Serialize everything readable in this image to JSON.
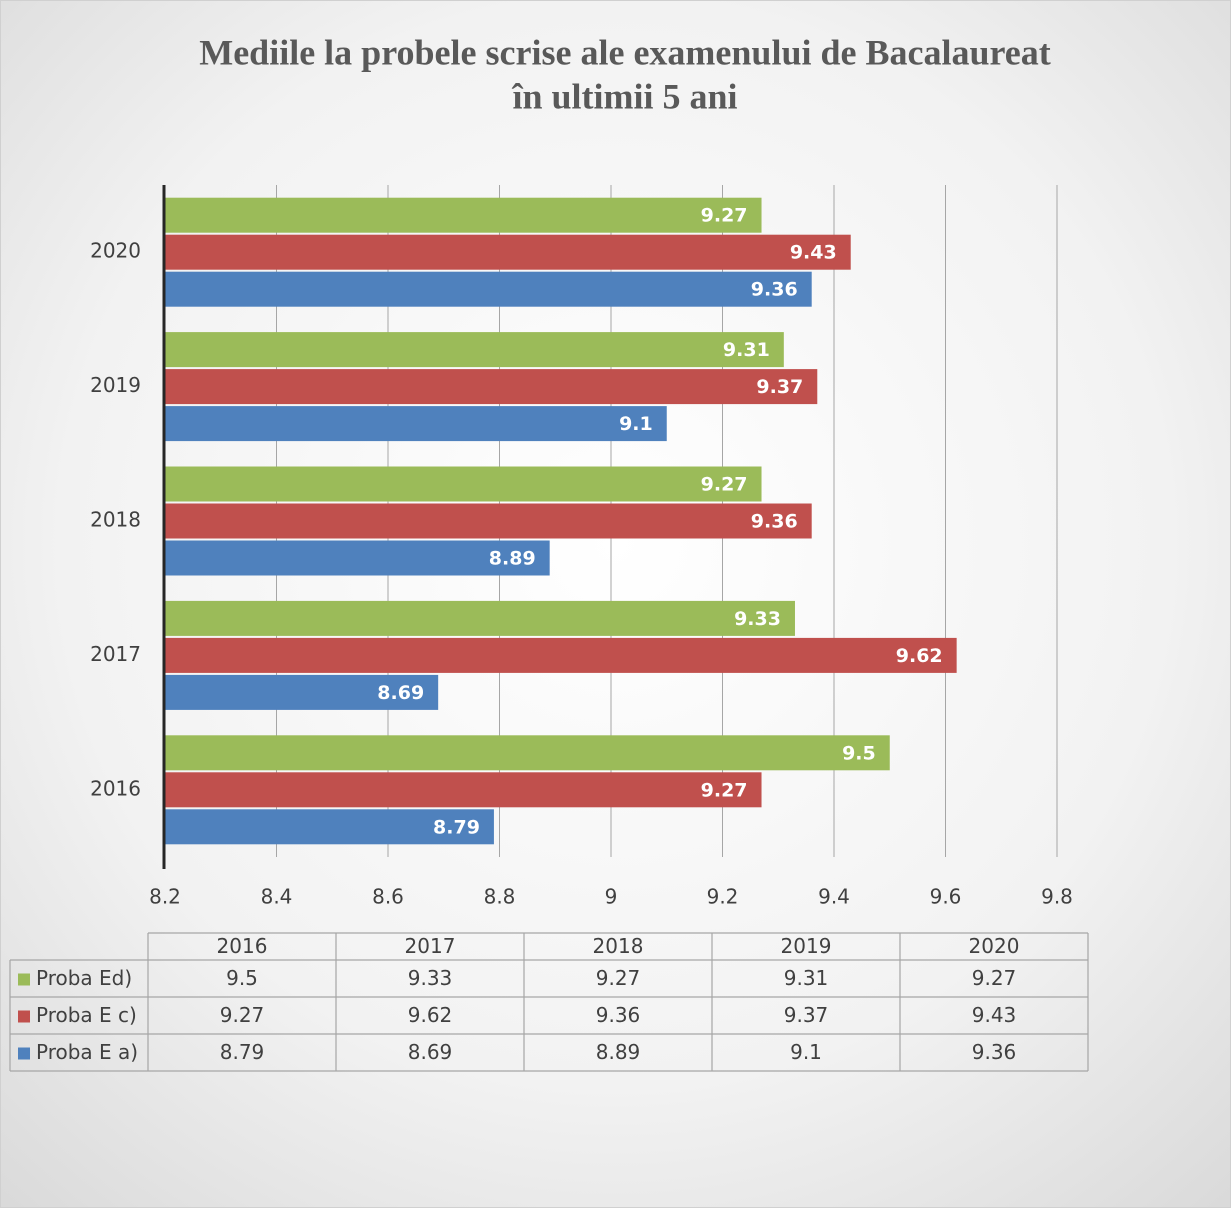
{
  "chart_data": {
    "type": "bar",
    "orientation": "horizontal",
    "title": [
      "Mediile la  probele scrise ale examenului de Bacalaureat",
      "în ultimii 5 ani"
    ],
    "categories": [
      "2016",
      "2017",
      "2018",
      "2019",
      "2020"
    ],
    "series": [
      {
        "name": "Proba Ed)",
        "color": "#9bbb59",
        "values": [
          9.5,
          9.33,
          9.27,
          9.31,
          9.27
        ]
      },
      {
        "name": "Proba E c)",
        "color": "#c0504d",
        "values": [
          9.27,
          9.62,
          9.36,
          9.37,
          9.43
        ]
      },
      {
        "name": "Proba E a)",
        "color": "#4f81bd",
        "values": [
          8.79,
          8.69,
          8.89,
          9.1,
          9.36
        ]
      }
    ],
    "xlim": [
      8.2,
      9.8
    ],
    "xticks": [
      8.2,
      8.4,
      8.6,
      8.8,
      9,
      9.2,
      9.4,
      9.6,
      9.8
    ],
    "grid": true,
    "data_table": true
  }
}
